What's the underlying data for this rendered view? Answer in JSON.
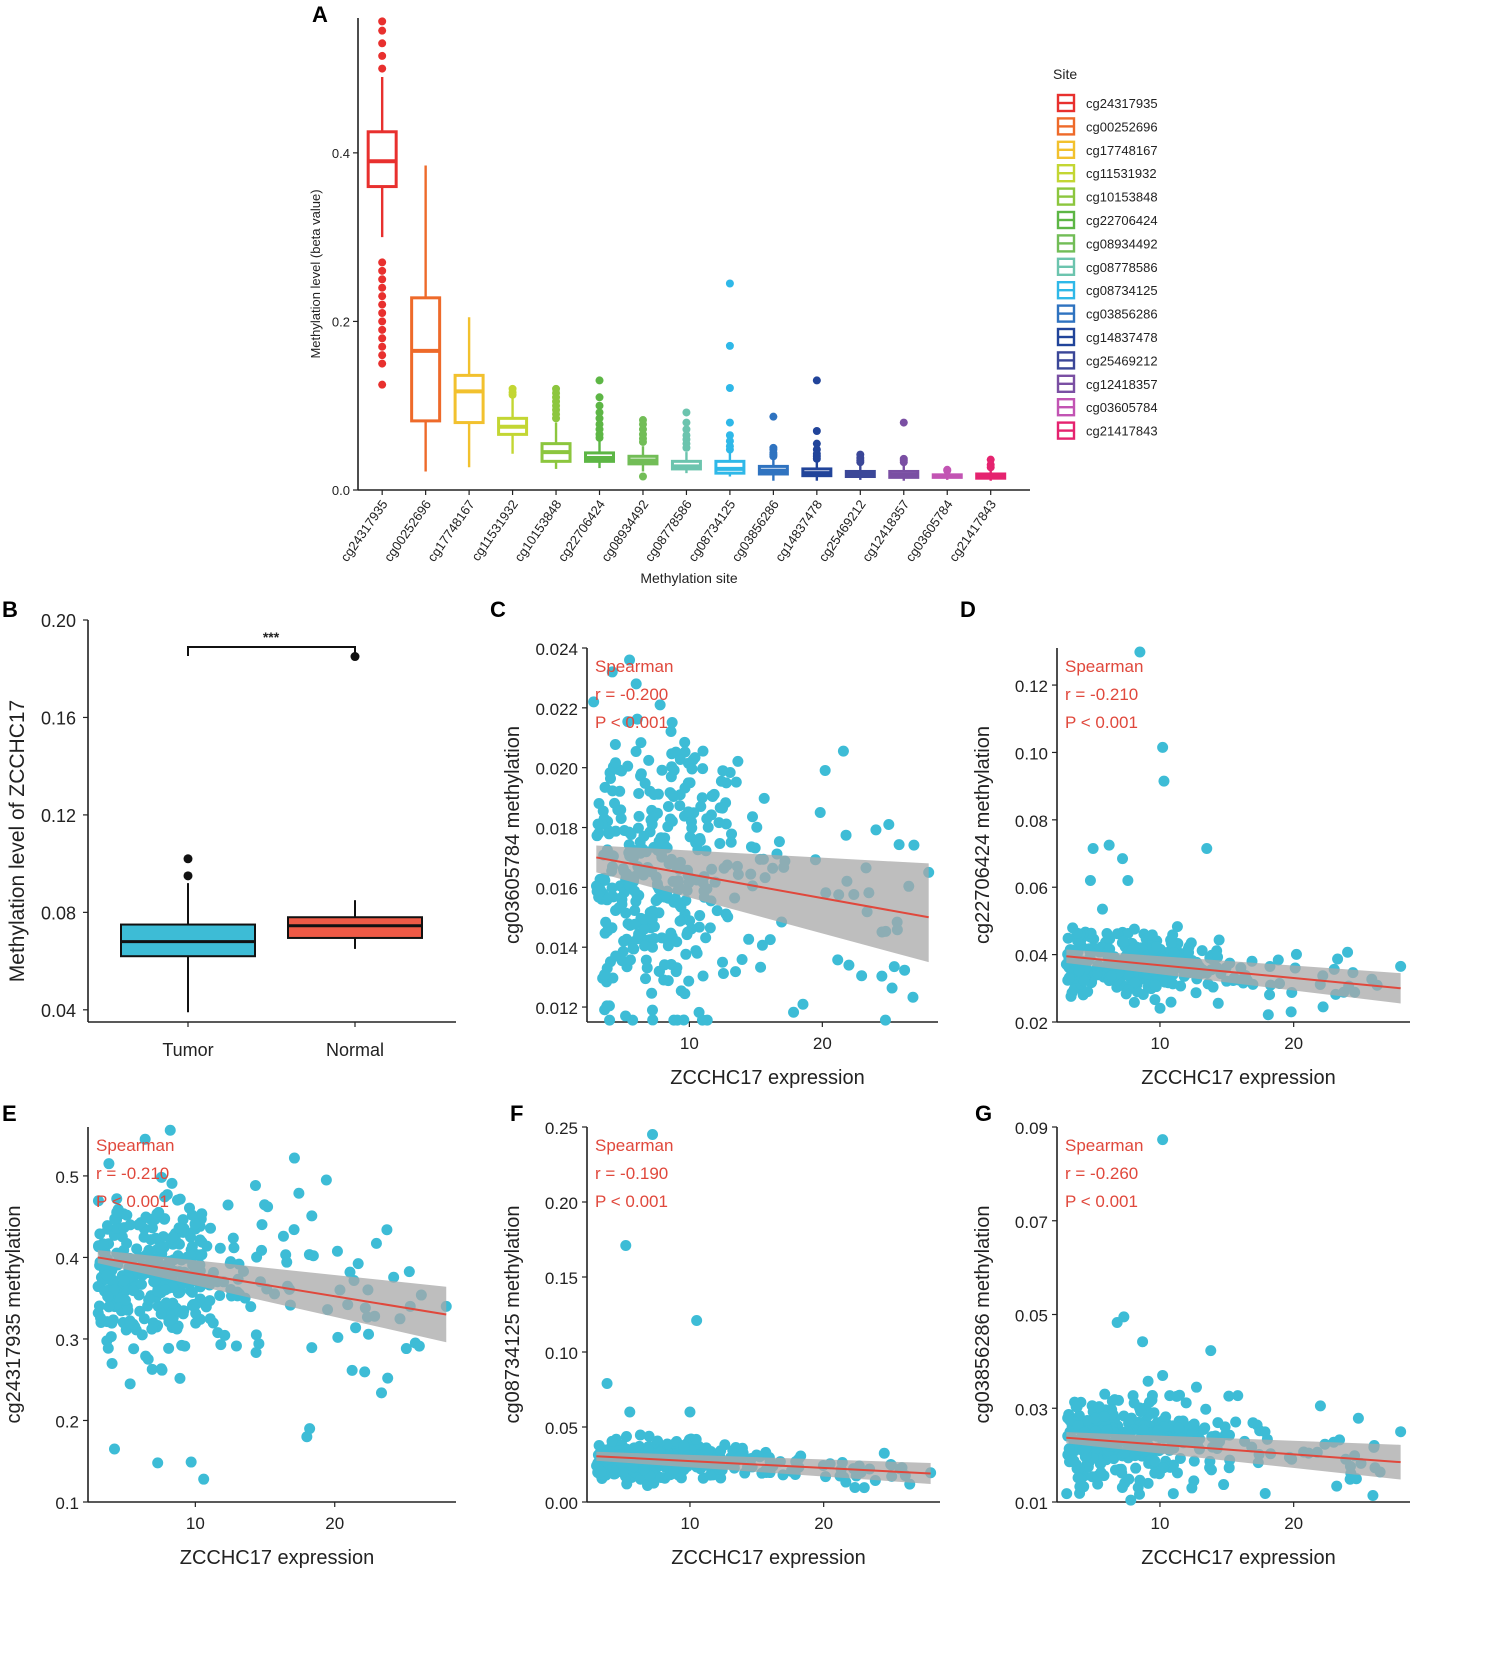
{
  "chart_data": [
    {
      "panel": "A",
      "type": "box",
      "xlabel": "Methylation site",
      "ylabel": "Methylation level (beta value)",
      "ylim": [
        0,
        0.56
      ],
      "yticks": [
        0.0,
        0.2,
        0.4
      ],
      "legend_title": "Site",
      "legend_position": "right",
      "series": [
        {
          "name": "cg24317935",
          "color": "#e8302e",
          "min": 0.3,
          "q1": 0.36,
          "median": 0.39,
          "q3": 0.425,
          "max": 0.49,
          "outliers": [
            0.556,
            0.545,
            0.53,
            0.515,
            0.5,
            0.27,
            0.26,
            0.25,
            0.24,
            0.23,
            0.22,
            0.21,
            0.2,
            0.19,
            0.18,
            0.17,
            0.16,
            0.15,
            0.125
          ]
        },
        {
          "name": "cg00252696",
          "color": "#ee6a2a",
          "min": 0.022,
          "q1": 0.082,
          "median": 0.165,
          "q3": 0.228,
          "max": 0.385,
          "outliers": []
        },
        {
          "name": "cg17748167",
          "color": "#f2c12e",
          "min": 0.027,
          "q1": 0.08,
          "median": 0.117,
          "q3": 0.136,
          "max": 0.205,
          "outliers": []
        },
        {
          "name": "cg11531932",
          "color": "#c3d633",
          "min": 0.043,
          "q1": 0.066,
          "median": 0.075,
          "q3": 0.085,
          "max": 0.11,
          "outliers": [
            0.12,
            0.116,
            0.113
          ]
        },
        {
          "name": "cg10153848",
          "color": "#8cc63e",
          "min": 0.025,
          "q1": 0.034,
          "median": 0.045,
          "q3": 0.055,
          "max": 0.08,
          "outliers": [
            0.12,
            0.115,
            0.11,
            0.105,
            0.1,
            0.095,
            0.09,
            0.085
          ]
        },
        {
          "name": "cg22706424",
          "color": "#5db645",
          "min": 0.026,
          "q1": 0.034,
          "median": 0.038,
          "q3": 0.044,
          "max": 0.058,
          "outliers": [
            0.13,
            0.11,
            0.1,
            0.092,
            0.085,
            0.078,
            0.072,
            0.066,
            0.062
          ]
        },
        {
          "name": "cg08934492",
          "color": "#72bd57",
          "min": 0.022,
          "q1": 0.031,
          "median": 0.035,
          "q3": 0.04,
          "max": 0.052,
          "outliers": [
            0.083,
            0.078,
            0.072,
            0.066,
            0.061,
            0.057,
            0.016
          ]
        },
        {
          "name": "cg08778586",
          "color": "#6cc4ae",
          "min": 0.02,
          "q1": 0.025,
          "median": 0.028,
          "q3": 0.034,
          "max": 0.045,
          "outliers": [
            0.092,
            0.08,
            0.072,
            0.065,
            0.06,
            0.055,
            0.05
          ]
        },
        {
          "name": "cg08734125",
          "color": "#2fb8e8",
          "min": 0.016,
          "q1": 0.02,
          "median": 0.025,
          "q3": 0.034,
          "max": 0.044,
          "outliers": [
            0.245,
            0.171,
            0.121,
            0.08,
            0.065,
            0.058,
            0.052,
            0.048
          ]
        },
        {
          "name": "cg03856286",
          "color": "#2f73c0",
          "min": 0.011,
          "q1": 0.019,
          "median": 0.023,
          "q3": 0.028,
          "max": 0.036,
          "outliers": [
            0.087,
            0.05,
            0.048,
            0.044,
            0.042,
            0.04
          ]
        },
        {
          "name": "cg14837478",
          "color": "#21449a",
          "min": 0.011,
          "q1": 0.017,
          "median": 0.02,
          "q3": 0.025,
          "max": 0.034,
          "outliers": [
            0.13,
            0.07,
            0.055,
            0.048,
            0.043,
            0.04,
            0.037
          ]
        },
        {
          "name": "cg25469212",
          "color": "#3b4798",
          "min": 0.012,
          "q1": 0.016,
          "median": 0.019,
          "q3": 0.022,
          "max": 0.03,
          "outliers": [
            0.042,
            0.038,
            0.035,
            0.033
          ]
        },
        {
          "name": "cg12418357",
          "color": "#7a4fa3",
          "min": 0.011,
          "q1": 0.015,
          "median": 0.018,
          "q3": 0.022,
          "max": 0.03,
          "outliers": [
            0.08,
            0.037,
            0.035,
            0.033
          ]
        },
        {
          "name": "cg03605784",
          "color": "#c254b3",
          "min": 0.012,
          "q1": 0.015,
          "median": 0.016,
          "q3": 0.018,
          "max": 0.021,
          "outliers": [
            0.024,
            0.023
          ]
        },
        {
          "name": "cg21417843",
          "color": "#e5236f",
          "min": 0.011,
          "q1": 0.014,
          "median": 0.016,
          "q3": 0.019,
          "max": 0.024,
          "outliers": [
            0.036,
            0.03,
            0.027
          ]
        }
      ]
    },
    {
      "panel": "B",
      "type": "box",
      "xlabel": "",
      "ylabel": "Methylation level of ZCCHC17",
      "ylim": [
        0.035,
        0.2
      ],
      "yticks": [
        0.04,
        0.08,
        0.12,
        0.16,
        0.2
      ],
      "ytick_labels": [
        "0.04",
        "0.08",
        "0.12",
        "0.16",
        "0.20"
      ],
      "significance": "***",
      "categories": [
        "Tumor",
        "Normal"
      ],
      "series": [
        {
          "name": "Tumor",
          "color": "#3dbcd6",
          "min": 0.039,
          "q1": 0.062,
          "median": 0.068,
          "q3": 0.075,
          "max": 0.092,
          "outliers": [
            0.102,
            0.095
          ]
        },
        {
          "name": "Normal",
          "color": "#ef5a46",
          "min": 0.065,
          "q1": 0.0695,
          "median": 0.0745,
          "q3": 0.078,
          "max": 0.085,
          "outliers": [
            0.185
          ]
        }
      ]
    },
    {
      "panel": "C",
      "type": "scatter",
      "xlabel": "ZCCHC17 expression",
      "ylabel": "cg03605784 methylation",
      "xlim": [
        2.3,
        28.7
      ],
      "ylim": [
        0.0115,
        0.024
      ],
      "xticks": [
        10,
        20
      ],
      "yticks": [
        0.012,
        0.014,
        0.016,
        0.018,
        0.02,
        0.022,
        0.024
      ],
      "ytick_labels": [
        "0.012",
        "0.014",
        "0.016",
        "0.018",
        "0.020",
        "0.022",
        "0.024"
      ],
      "annotation": [
        "Spearman",
        "r = -0.200",
        "P < 0.001"
      ],
      "seed": 11,
      "n_points": 330,
      "fit": {
        "x0": 3,
        "y0": 0.017,
        "x1": 28,
        "y1": 0.015
      },
      "band": {
        "lower0": 0.0165,
        "upper0": 0.0174,
        "lower1": 0.0135,
        "upper1": 0.0168
      },
      "cluster": {
        "x_center": 7.5,
        "x_spread": 3.2,
        "y_center": 0.0164,
        "y_spread": 0.0022
      },
      "sparse": {
        "x_min": 12,
        "x_max": 27,
        "count": 45
      },
      "outliers": [
        [
          2.8,
          0.0222
        ],
        [
          4.2,
          0.0232
        ],
        [
          5.5,
          0.0236
        ],
        [
          6.0,
          0.0228
        ],
        [
          7.8,
          0.0221
        ],
        [
          28.0,
          0.0165
        ],
        [
          25.0,
          0.0181
        ],
        [
          22.0,
          0.0134
        ],
        [
          5.2,
          0.0117
        ]
      ]
    },
    {
      "panel": "D",
      "type": "scatter",
      "xlabel": "ZCCHC17 expression",
      "ylabel": "cg22706424 methylation",
      "xlim": [
        2.3,
        28.7
      ],
      "ylim": [
        0.02,
        0.131
      ],
      "xticks": [
        10,
        20
      ],
      "yticks": [
        0.02,
        0.04,
        0.06,
        0.08,
        0.1,
        0.12
      ],
      "ytick_labels": [
        "0.02",
        "0.04",
        "0.06",
        "0.08",
        "0.10",
        "0.12"
      ],
      "annotation": [
        "Spearman",
        "r = -0.210",
        "P < 0.001"
      ],
      "seed": 23,
      "n_points": 330,
      "fit": {
        "x0": 3,
        "y0": 0.0395,
        "x1": 28,
        "y1": 0.03
      },
      "band": {
        "lower0": 0.0375,
        "upper0": 0.0415,
        "lower1": 0.0255,
        "upper1": 0.0345
      },
      "cluster": {
        "x_center": 7.5,
        "x_spread": 3.2,
        "y_center": 0.037,
        "y_spread": 0.0045
      },
      "sparse": {
        "x_min": 12,
        "x_max": 27,
        "count": 45
      },
      "outliers": [
        [
          8.5,
          0.1298
        ],
        [
          10.2,
          0.1015
        ],
        [
          10.3,
          0.0915
        ],
        [
          13.5,
          0.0715
        ],
        [
          5.0,
          0.0715
        ],
        [
          6.2,
          0.0725
        ],
        [
          7.2,
          0.0685
        ],
        [
          7.6,
          0.062
        ],
        [
          4.8,
          0.062
        ],
        [
          5.7,
          0.0535
        ],
        [
          28.0,
          0.0365
        ],
        [
          22.2,
          0.0245
        ]
      ]
    },
    {
      "panel": "E",
      "type": "scatter",
      "xlabel": "ZCCHC17 expression",
      "ylabel": "cg24317935 methylation",
      "xlim": [
        2.3,
        28.7
      ],
      "ylim": [
        0.1,
        0.56
      ],
      "xticks": [
        10,
        20
      ],
      "yticks": [
        0.1,
        0.2,
        0.3,
        0.4,
        0.5
      ],
      "ytick_labels": [
        "0.1",
        "0.2",
        "0.3",
        "0.4",
        "0.5"
      ],
      "annotation": [
        "Spearman",
        "r = -0.210",
        "P < 0.001"
      ],
      "seed": 37,
      "n_points": 330,
      "fit": {
        "x0": 3,
        "y0": 0.4,
        "x1": 28,
        "y1": 0.33
      },
      "band": {
        "lower0": 0.393,
        "upper0": 0.409,
        "lower1": 0.296,
        "upper1": 0.364
      },
      "cluster": {
        "x_center": 7.5,
        "x_spread": 3.2,
        "y_center": 0.385,
        "y_spread": 0.05
      },
      "sparse": {
        "x_min": 12,
        "x_max": 27,
        "count": 45
      },
      "outliers": [
        [
          8.2,
          0.556
        ],
        [
          6.4,
          0.545
        ],
        [
          3.8,
          0.515
        ],
        [
          10.6,
          0.128
        ],
        [
          7.3,
          0.148
        ],
        [
          9.7,
          0.149
        ],
        [
          4.2,
          0.165
        ],
        [
          18.0,
          0.18
        ],
        [
          18.2,
          0.19
        ],
        [
          19.4,
          0.495
        ],
        [
          23.8,
          0.252
        ],
        [
          28.0,
          0.34
        ]
      ]
    },
    {
      "panel": "F",
      "type": "scatter",
      "xlabel": "ZCCHC17 expression",
      "ylabel": "cg08734125 methylation",
      "xlim": [
        2.3,
        28.7
      ],
      "ylim": [
        0.0,
        0.25
      ],
      "xticks": [
        10,
        20
      ],
      "yticks": [
        0.0,
        0.05,
        0.1,
        0.15,
        0.2,
        0.25
      ],
      "ytick_labels": [
        "0.00",
        "0.05",
        "0.10",
        "0.15",
        "0.20",
        "0.25"
      ],
      "annotation": [
        "Spearman",
        "r = -0.190",
        "P < 0.001"
      ],
      "seed": 41,
      "n_points": 330,
      "fit": {
        "x0": 3,
        "y0": 0.0305,
        "x1": 28,
        "y1": 0.019
      },
      "band": {
        "lower0": 0.0275,
        "upper0": 0.0335,
        "lower1": 0.012,
        "upper1": 0.026
      },
      "cluster": {
        "x_center": 7.5,
        "x_spread": 3.2,
        "y_center": 0.028,
        "y_spread": 0.006
      },
      "sparse": {
        "x_min": 12,
        "x_max": 27,
        "count": 45
      },
      "outliers": [
        [
          7.2,
          0.245
        ],
        [
          5.2,
          0.171
        ],
        [
          10.5,
          0.121
        ],
        [
          3.8,
          0.079
        ],
        [
          5.5,
          0.06
        ],
        [
          10.0,
          0.06
        ],
        [
          28.0,
          0.0195
        ]
      ]
    },
    {
      "panel": "G",
      "type": "scatter",
      "xlabel": "ZCCHC17 expression",
      "ylabel": "cg03856286 methylation",
      "xlim": [
        2.3,
        28.7
      ],
      "ylim": [
        0.01,
        0.09
      ],
      "xticks": [
        10,
        20
      ],
      "yticks": [
        0.01,
        0.03,
        0.05,
        0.07,
        0.09
      ],
      "ytick_labels": [
        "0.01",
        "0.03",
        "0.05",
        "0.07",
        "0.09"
      ],
      "annotation": [
        "Spearman",
        "r = -0.260",
        "P < 0.001"
      ],
      "seed": 53,
      "n_points": 330,
      "fit": {
        "x0": 3,
        "y0": 0.0237,
        "x1": 28,
        "y1": 0.0185
      },
      "band": {
        "lower0": 0.0225,
        "upper0": 0.0249,
        "lower1": 0.0148,
        "upper1": 0.0222
      },
      "cluster": {
        "x_center": 7.5,
        "x_spread": 3.2,
        "y_center": 0.023,
        "y_spread": 0.0042
      },
      "sparse": {
        "x_min": 12,
        "x_max": 27,
        "count": 45
      },
      "outliers": [
        [
          10.2,
          0.0873
        ],
        [
          7.3,
          0.0495
        ],
        [
          6.8,
          0.0483
        ],
        [
          8.7,
          0.0442
        ],
        [
          13.8,
          0.0423
        ],
        [
          10.2,
          0.037
        ],
        [
          22.0,
          0.0305
        ],
        [
          28.0,
          0.025
        ],
        [
          11.0,
          0.0118
        ]
      ]
    }
  ],
  "panel_labels": {
    "A": "A",
    "B": "B",
    "C": "C",
    "D": "D",
    "E": "E",
    "F": "F",
    "G": "G"
  },
  "colors": {
    "scatter_point": "#3dbcd6",
    "fit_line": "#e0483c",
    "band": "#a8a8a8",
    "annotation": "#e0483c"
  }
}
